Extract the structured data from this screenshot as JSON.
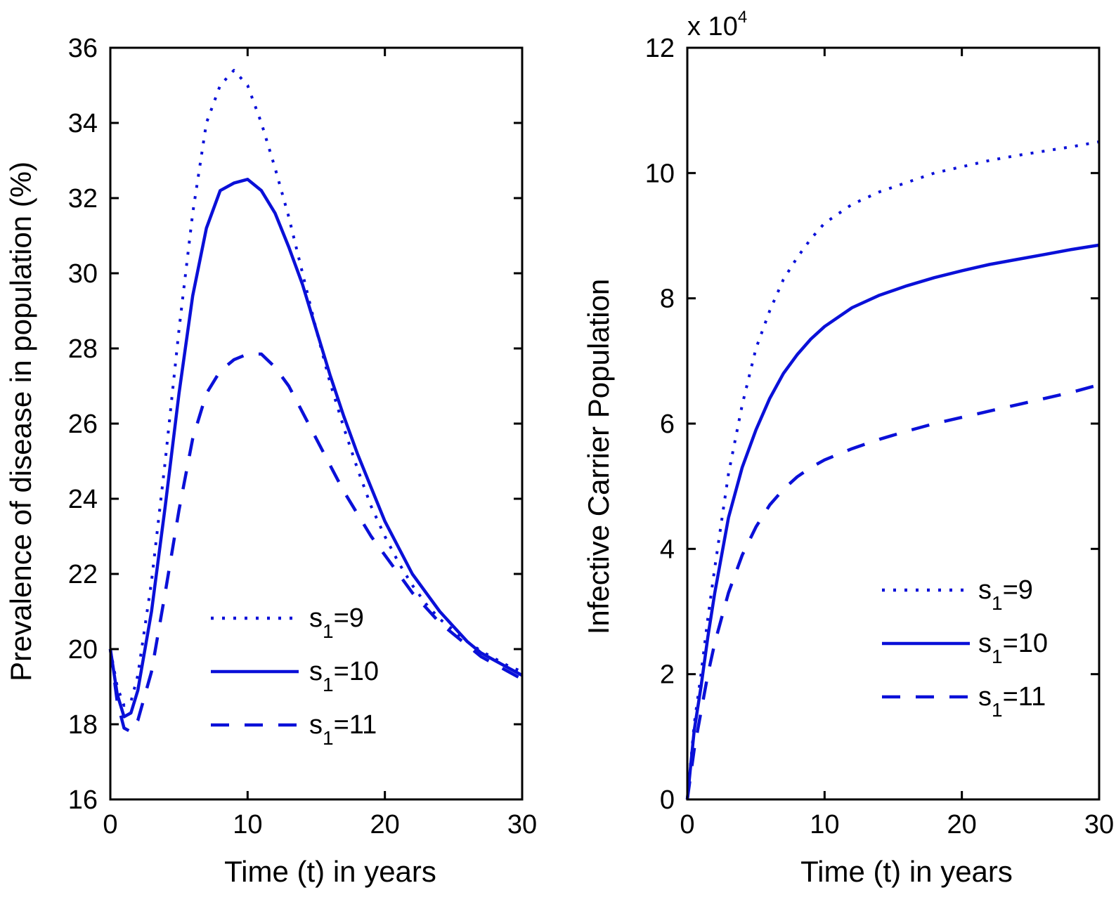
{
  "chart_data": [
    {
      "type": "line",
      "title": "",
      "xlabel": "Time (t) in years",
      "ylabel": "Prevalence of disease in population (%)",
      "xlim": [
        0,
        30
      ],
      "ylim": [
        16,
        36
      ],
      "xticks": [
        "0",
        "10",
        "20",
        "30"
      ],
      "yticks": [
        "16",
        "18",
        "20",
        "22",
        "24",
        "26",
        "28",
        "30",
        "32",
        "34",
        "36"
      ],
      "grid": false,
      "legend_position": "bottom-center",
      "color": "#0a10d8",
      "series": [
        {
          "name": "s1=9",
          "label_base": "s",
          "label_sub": "1",
          "label_rest": "=9",
          "style": "dotted",
          "x": [
            0,
            0.5,
            1,
            1.5,
            2,
            3,
            4,
            5,
            6,
            7,
            8,
            9,
            10,
            11,
            12,
            13,
            14,
            15,
            16,
            17,
            18,
            19,
            20,
            21,
            22,
            23,
            24,
            25,
            26,
            27,
            28,
            29,
            30
          ],
          "y": [
            20.0,
            19.0,
            18.5,
            18.6,
            19.3,
            21.8,
            25.0,
            28.5,
            31.6,
            34.0,
            35.0,
            35.4,
            35.0,
            34.0,
            32.8,
            31.5,
            30.0,
            28.5,
            27.1,
            25.9,
            24.8,
            23.8,
            23.0,
            22.3,
            21.7,
            21.2,
            20.8,
            20.5,
            20.2,
            19.95,
            19.75,
            19.55,
            19.4
          ]
        },
        {
          "name": "s1=10",
          "label_base": "s",
          "label_sub": "1",
          "label_rest": "=10",
          "style": "solid",
          "x": [
            0,
            0.5,
            1,
            1.5,
            2,
            3,
            4,
            5,
            6,
            7,
            8,
            9,
            10,
            11,
            12,
            13,
            14,
            15,
            16,
            17,
            18,
            19,
            20,
            21,
            22,
            23,
            24,
            25,
            26,
            27,
            28,
            29,
            30
          ],
          "y": [
            20.0,
            18.8,
            18.2,
            18.3,
            18.9,
            21.0,
            23.8,
            26.8,
            29.4,
            31.2,
            32.2,
            32.4,
            32.5,
            32.2,
            31.6,
            30.7,
            29.7,
            28.5,
            27.3,
            26.2,
            25.2,
            24.3,
            23.4,
            22.7,
            22.0,
            21.5,
            21.0,
            20.6,
            20.2,
            19.9,
            19.7,
            19.5,
            19.3
          ]
        },
        {
          "name": "s1=11",
          "label_base": "s",
          "label_sub": "1",
          "label_rest": "=11",
          "style": "dashed",
          "x": [
            0,
            0.5,
            1,
            1.5,
            2,
            3,
            4,
            5,
            6,
            7,
            8,
            9,
            10,
            11,
            12,
            13,
            14,
            15,
            16,
            17,
            18,
            19,
            20,
            21,
            22,
            23,
            24,
            25,
            26,
            27,
            28,
            29,
            30
          ],
          "y": [
            20.0,
            18.6,
            17.9,
            17.8,
            18.1,
            19.4,
            21.5,
            23.7,
            25.6,
            26.8,
            27.4,
            27.7,
            27.85,
            27.85,
            27.5,
            27.0,
            26.3,
            25.6,
            24.9,
            24.2,
            23.6,
            23.0,
            22.5,
            22.0,
            21.5,
            21.1,
            20.7,
            20.4,
            20.1,
            19.8,
            19.6,
            19.4,
            19.2
          ]
        }
      ]
    },
    {
      "type": "line",
      "title": "",
      "xlabel": "Time (t) in years",
      "ylabel": "Infective Carrier Population",
      "y_multiplier_base": "x 10",
      "y_multiplier_exp": "4",
      "xlim": [
        0,
        30
      ],
      "ylim": [
        0,
        12
      ],
      "xticks": [
        "0",
        "10",
        "20",
        "30"
      ],
      "yticks": [
        "0",
        "2",
        "4",
        "6",
        "8",
        "10",
        "12"
      ],
      "grid": false,
      "legend_position": "bottom-right",
      "color": "#0a10d8",
      "series": [
        {
          "name": "s1=9",
          "label_base": "s",
          "label_sub": "1",
          "label_rest": "=9",
          "style": "dotted",
          "x": [
            0,
            0.5,
            1,
            1.5,
            2,
            3,
            4,
            5,
            6,
            7,
            8,
            9,
            10,
            12,
            14,
            16,
            18,
            20,
            22,
            24,
            26,
            28,
            30
          ],
          "y": [
            0,
            1.2,
            2.0,
            2.9,
            3.7,
            5.2,
            6.3,
            7.2,
            7.8,
            8.3,
            8.65,
            8.95,
            9.2,
            9.5,
            9.7,
            9.85,
            10.0,
            10.1,
            10.2,
            10.28,
            10.35,
            10.42,
            10.5
          ]
        },
        {
          "name": "s1=10",
          "label_base": "s",
          "label_sub": "1",
          "label_rest": "=10",
          "style": "solid",
          "x": [
            0,
            0.5,
            1,
            1.5,
            2,
            3,
            4,
            5,
            6,
            7,
            8,
            9,
            10,
            12,
            14,
            16,
            18,
            20,
            22,
            24,
            26,
            28,
            30
          ],
          "y": [
            0,
            1.1,
            1.8,
            2.6,
            3.3,
            4.5,
            5.3,
            5.9,
            6.4,
            6.8,
            7.1,
            7.35,
            7.55,
            7.85,
            8.05,
            8.2,
            8.33,
            8.44,
            8.54,
            8.62,
            8.7,
            8.78,
            8.85
          ]
        },
        {
          "name": "s1=11",
          "label_base": "s",
          "label_sub": "1",
          "label_rest": "=11",
          "style": "dashed",
          "x": [
            0,
            0.5,
            1,
            1.5,
            2,
            3,
            4,
            5,
            6,
            7,
            8,
            9,
            10,
            12,
            14,
            16,
            18,
            20,
            22,
            24,
            26,
            28,
            30
          ],
          "y": [
            0,
            0.8,
            1.4,
            2.0,
            2.5,
            3.3,
            3.9,
            4.35,
            4.7,
            4.95,
            5.15,
            5.3,
            5.42,
            5.6,
            5.75,
            5.88,
            6.0,
            6.1,
            6.2,
            6.3,
            6.4,
            6.5,
            6.62
          ]
        }
      ]
    }
  ]
}
